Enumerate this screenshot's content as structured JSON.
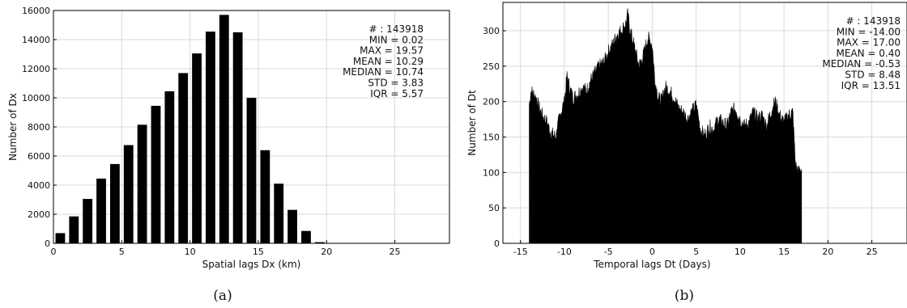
{
  "chart_data": [
    {
      "type": "bar",
      "caption": "(a)",
      "xlabel": "Spatial lags Dx (km)",
      "ylabel": "Number of Dx",
      "xlim": [
        0,
        29
      ],
      "ylim": [
        0,
        16000
      ],
      "xticks": [
        0,
        5,
        10,
        15,
        20,
        25
      ],
      "yticks": [
        0,
        2000,
        4000,
        6000,
        8000,
        10000,
        12000,
        14000,
        16000
      ],
      "grid": true,
      "x": [
        0.5,
        1.5,
        2.5,
        3.5,
        4.5,
        5.5,
        6.5,
        7.5,
        8.5,
        9.5,
        10.5,
        11.5,
        12.5,
        13.5,
        14.5,
        15.5,
        16.5,
        17.5,
        18.5,
        19.5
      ],
      "values": [
        700,
        1850,
        3050,
        4450,
        5450,
        6750,
        8150,
        9450,
        10450,
        11700,
        13050,
        14550,
        15700,
        14500,
        10000,
        6400,
        4100,
        2300,
        850,
        80
      ],
      "stats": [
        "# : 143918",
        "MIN = 0.02",
        "MAX =  19.57",
        "MEAN = 10.29",
        "MEDIAN = 10.74",
        "STD = 3.83",
        "IQR = 5.57"
      ]
    },
    {
      "type": "area",
      "caption": "(b)",
      "xlabel": "Temporal lags Dt (Days)",
      "ylabel": "Number of Dt",
      "xlim": [
        -17,
        29
      ],
      "ylim": [
        0,
        340
      ],
      "xticks": [
        -15,
        -10,
        -5,
        0,
        5,
        10,
        15,
        20,
        25
      ],
      "yticks": [
        0,
        50,
        100,
        150,
        200,
        250,
        300
      ],
      "grid": true,
      "x": [
        -14.0,
        -13.8,
        -13.5,
        -13.2,
        -13.0,
        -12.5,
        -12.0,
        -11.5,
        -11.0,
        -10.5,
        -10.0,
        -9.7,
        -9.3,
        -9.0,
        -8.5,
        -8.0,
        -7.5,
        -7.0,
        -6.5,
        -6.0,
        -5.5,
        -5.0,
        -4.5,
        -4.0,
        -3.5,
        -3.0,
        -2.8,
        -2.5,
        -2.0,
        -1.5,
        -1.0,
        -0.5,
        0.0,
        0.3,
        0.7,
        1.0,
        1.5,
        2.0,
        2.5,
        3.0,
        3.5,
        4.0,
        4.5,
        5.0,
        5.5,
        6.0,
        6.5,
        7.0,
        7.5,
        8.0,
        8.5,
        9.0,
        9.5,
        10.0,
        10.5,
        11.0,
        11.5,
        12.0,
        12.5,
        13.0,
        13.5,
        14.0,
        14.5,
        15.0,
        15.5,
        16.0,
        16.3,
        16.6,
        17.0
      ],
      "y": [
        195,
        215,
        210,
        205,
        195,
        180,
        170,
        155,
        150,
        180,
        200,
        235,
        215,
        205,
        210,
        220,
        215,
        230,
        240,
        250,
        255,
        270,
        280,
        295,
        300,
        310,
        322,
        300,
        275,
        250,
        265,
        290,
        280,
        230,
        205,
        200,
        220,
        215,
        205,
        190,
        185,
        175,
        185,
        195,
        160,
        150,
        165,
        160,
        175,
        170,
        165,
        185,
        190,
        175,
        165,
        170,
        185,
        175,
        180,
        165,
        185,
        200,
        180,
        170,
        180,
        185,
        110,
        100,
        105
      ],
      "stats": [
        "# : 143918",
        "MIN = -14.00",
        "MAX =  17.00",
        "MEAN = 0.40",
        "MEDIAN = -0.53",
        "STD = 8.48",
        "IQR = 13.51"
      ]
    }
  ]
}
